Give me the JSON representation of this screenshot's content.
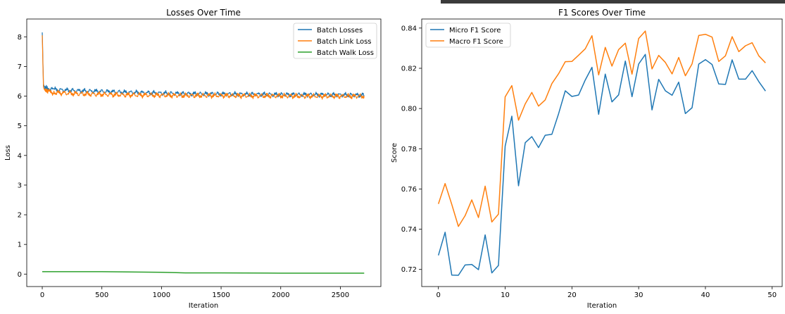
{
  "colors": {
    "blue": "#1f77b4",
    "orange": "#ff7f0e",
    "green": "#2ca02c"
  },
  "chart_data": [
    {
      "type": "line",
      "title": "Losses Over Time",
      "xlabel": "Iteration",
      "ylabel": "Loss",
      "xlim": [
        -130,
        2840
      ],
      "ylim": [
        -0.42,
        8.6
      ],
      "xticks": [
        0,
        500,
        1000,
        1500,
        2000,
        2500
      ],
      "yticks": [
        0,
        1,
        2,
        3,
        4,
        5,
        6,
        7,
        8
      ],
      "legend_position": "top-right",
      "series": [
        {
          "name": "Batch Losses",
          "color": "#1f77b4",
          "x": [
            0,
            10,
            20,
            50,
            100,
            200,
            300,
            500,
            700,
            1000,
            1200,
            1500,
            1800,
            2000,
            2200,
            2500,
            2700
          ],
          "values": [
            8.15,
            6.4,
            6.3,
            6.25,
            6.22,
            6.2,
            6.18,
            6.16,
            6.13,
            6.1,
            6.08,
            6.07,
            6.06,
            6.05,
            6.05,
            6.04,
            6.03
          ]
        },
        {
          "name": "Batch Link Loss",
          "color": "#ff7f0e",
          "x": [
            0,
            10,
            20,
            50,
            100,
            200,
            300,
            500,
            700,
            1000,
            1200,
            1500,
            1800,
            2000,
            2200,
            2500,
            2700
          ],
          "values": [
            8.05,
            6.3,
            6.2,
            6.15,
            6.12,
            6.1,
            6.08,
            6.06,
            6.04,
            6.03,
            6.02,
            6.02,
            6.01,
            6.01,
            6.0,
            6.0,
            6.0
          ]
        },
        {
          "name": "Batch Walk Loss",
          "color": "#2ca02c",
          "x": [
            0,
            500,
            1000,
            1200,
            1500,
            2000,
            2500,
            2700
          ],
          "values": [
            0.08,
            0.08,
            0.06,
            0.04,
            0.04,
            0.03,
            0.03,
            0.03
          ]
        }
      ]
    },
    {
      "type": "line",
      "title": "F1 Scores Over Time",
      "xlabel": "Iteration",
      "ylabel": "Score",
      "xlim": [
        -2.5,
        51.5
      ],
      "ylim": [
        0.7115,
        0.8445
      ],
      "xticks": [
        0,
        10,
        20,
        30,
        40,
        50
      ],
      "yticks": [
        0.72,
        0.74,
        0.76,
        0.78,
        0.8,
        0.82,
        0.84
      ],
      "legend_position": "top-left",
      "series": [
        {
          "name": "Micro F1 Score",
          "color": "#1f77b4",
          "values": [
            0.727,
            0.7385,
            0.7172,
            0.7171,
            0.7222,
            0.7225,
            0.7199,
            0.7372,
            0.7183,
            0.722,
            0.7813,
            0.7962,
            0.7616,
            0.783,
            0.786,
            0.7806,
            0.7867,
            0.7872,
            0.7974,
            0.8088,
            0.806,
            0.8067,
            0.8142,
            0.8205,
            0.7971,
            0.8171,
            0.8033,
            0.8068,
            0.8236,
            0.8059,
            0.8221,
            0.8269,
            0.7993,
            0.8145,
            0.8088,
            0.8066,
            0.8131,
            0.7975,
            0.8004,
            0.8221,
            0.8243,
            0.8219,
            0.8122,
            0.812,
            0.8242,
            0.8146,
            0.8146,
            0.8188,
            0.8134,
            0.8087
          ]
        },
        {
          "name": "Macro F1 Score",
          "color": "#ff7f0e",
          "values": [
            0.7526,
            0.7627,
            0.7523,
            0.7414,
            0.7467,
            0.7546,
            0.7458,
            0.7614,
            0.7436,
            0.7475,
            0.8058,
            0.8114,
            0.7942,
            0.8023,
            0.808,
            0.8012,
            0.8043,
            0.8124,
            0.8173,
            0.8233,
            0.8234,
            0.8265,
            0.8297,
            0.8362,
            0.8167,
            0.8304,
            0.8211,
            0.8293,
            0.8325,
            0.8171,
            0.8348,
            0.8385,
            0.8197,
            0.8264,
            0.8229,
            0.8172,
            0.8254,
            0.8163,
            0.8222,
            0.8363,
            0.8369,
            0.8355,
            0.8234,
            0.8262,
            0.8357,
            0.8283,
            0.8312,
            0.8327,
            0.8262,
            0.8227
          ]
        }
      ]
    }
  ]
}
